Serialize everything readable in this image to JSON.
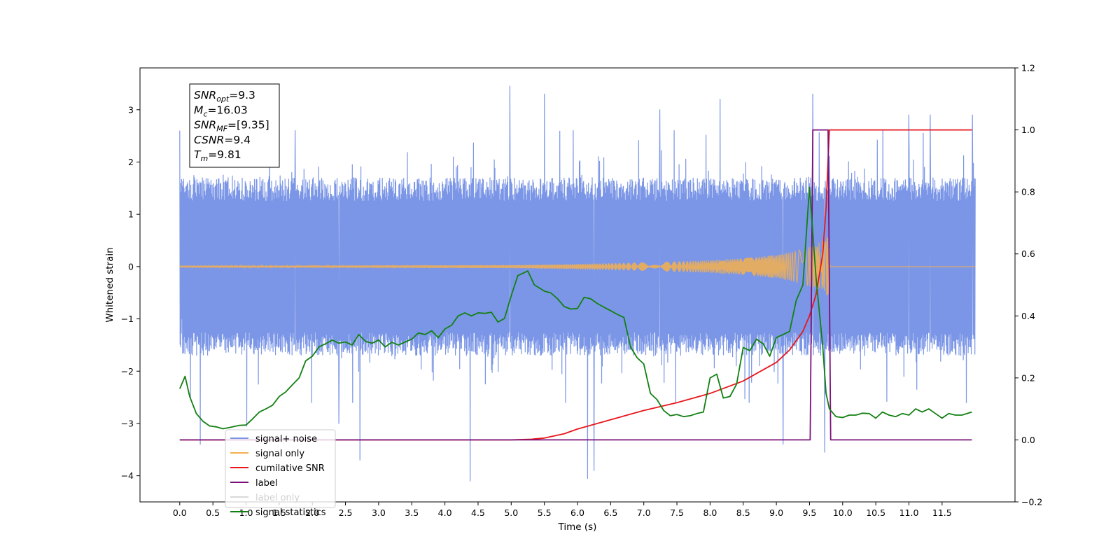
{
  "chart_data": {
    "type": "line",
    "title": "",
    "xlabel": "Time (s)",
    "ylabel": "Whitened strain",
    "ylabel_right": "",
    "xlim": [
      -0.6,
      12.6
    ],
    "ylim": [
      -4.5,
      3.8
    ],
    "ylim_right": [
      -0.2,
      1.2
    ],
    "grid": false,
    "legend_position": "lower-left",
    "x_ticks": [
      "0.0",
      "0.5",
      "1.0",
      "1.5",
      "2.0",
      "2.5",
      "3.0",
      "3.5",
      "4.0",
      "4.5",
      "5.0",
      "5.5",
      "6.0",
      "6.5",
      "7.0",
      "7.5",
      "8.0",
      "8.5",
      "9.0",
      "9.5",
      "10.0",
      "10.5",
      "11.0",
      "11.5"
    ],
    "x_tick_values": [
      0,
      0.5,
      1,
      1.5,
      2,
      2.5,
      3,
      3.5,
      4,
      4.5,
      5,
      5.5,
      6,
      6.5,
      7,
      7.5,
      8,
      8.5,
      9,
      9.5,
      10,
      10.5,
      11,
      11.5
    ],
    "y_ticks_left": [
      "−4",
      "−3",
      "−2",
      "−1",
      "0",
      "1",
      "2",
      "3"
    ],
    "y_tick_values_left": [
      -4,
      -3,
      -2,
      -1,
      0,
      1,
      2,
      3
    ],
    "y_ticks_right": [
      "−0.2",
      "0.0",
      "0.2",
      "0.4",
      "0.6",
      "0.8",
      "1.0",
      "1.2"
    ],
    "y_tick_values_right": [
      -0.2,
      0,
      0.2,
      0.4,
      0.6,
      0.8,
      1.0,
      1.2
    ],
    "info_box": {
      "lines": [
        {
          "sym": "SNR",
          "sub": "opt",
          "val": "=9.3"
        },
        {
          "sym": "M",
          "sub": "c",
          "val": "=16.03"
        },
        {
          "sym": "SNR",
          "sub": "MF",
          "val": "=[9.35]"
        },
        {
          "sym": "CSNR",
          "sub": "",
          "val": "=9.4"
        },
        {
          "sym": "T",
          "sub": "m",
          "val": "=9.81"
        }
      ]
    },
    "series": [
      {
        "name": "signal+ noise",
        "axis": "left",
        "color": "#7b96e6",
        "x_range": [
          0,
          12
        ],
        "noise_band": 1.7,
        "spike_max": 3.45,
        "spike_min": -4.1,
        "spikes": [
          [
            0.03,
            2.72
          ],
          [
            0.03,
            -1.0
          ],
          [
            0.31,
            -3.4
          ],
          [
            1.01,
            -3.05
          ],
          [
            1.74,
            2.6
          ],
          [
            2.4,
            -3.0
          ],
          [
            2.72,
            -3.7
          ],
          [
            4.38,
            -4.1
          ],
          [
            4.98,
            3.45
          ],
          [
            5.5,
            3.3
          ],
          [
            6.15,
            -4.05
          ],
          [
            6.25,
            -3.9
          ],
          [
            7.24,
            3.0
          ],
          [
            8.15,
            3.2
          ],
          [
            9.1,
            -3.4
          ],
          [
            9.55,
            3.3
          ],
          [
            9.73,
            -3.55
          ],
          [
            11.0,
            2.9
          ],
          [
            11.32,
            2.9
          ],
          [
            11.96,
            2.9
          ]
        ]
      },
      {
        "name": "signal only",
        "axis": "left",
        "color": "#f6b04e",
        "x": [
          0,
          5.0,
          6.0,
          7.0,
          8.0,
          8.5,
          9.0,
          9.3,
          9.5,
          9.65,
          9.75,
          9.8,
          9.81,
          12.0
        ],
        "amplitude": [
          0.01,
          0.03,
          0.05,
          0.08,
          0.12,
          0.16,
          0.22,
          0.3,
          0.38,
          0.46,
          0.55,
          0.6,
          0.0,
          0.0
        ]
      },
      {
        "name": "cumilative SNR",
        "axis": "right",
        "color": "#e8161b",
        "x": [
          0,
          5.0,
          5.3,
          5.5,
          5.8,
          6.0,
          6.5,
          7.0,
          7.5,
          8.0,
          8.5,
          9.0,
          9.2,
          9.4,
          9.5,
          9.6,
          9.7,
          9.75,
          9.8,
          11.95
        ],
        "values": [
          0,
          0,
          0.002,
          0.006,
          0.02,
          0.035,
          0.065,
          0.095,
          0.12,
          0.15,
          0.19,
          0.25,
          0.29,
          0.35,
          0.4,
          0.47,
          0.6,
          0.75,
          1.0,
          1.0
        ]
      },
      {
        "name": "label",
        "axis": "right",
        "color": "#7a127a",
        "x": [
          0,
          9.51,
          9.55,
          9.78,
          9.82,
          11.95
        ],
        "values": [
          0,
          0,
          1.0,
          1.0,
          0,
          0
        ]
      },
      {
        "name": "label only",
        "axis": "right",
        "color": "#d9d9d9",
        "x": [],
        "values": []
      },
      {
        "name": "signal statistics",
        "axis": "right",
        "color": "#128012",
        "x": [
          0,
          0.08,
          0.15,
          0.25,
          0.35,
          0.45,
          0.55,
          0.65,
          0.75,
          0.9,
          1.0,
          1.1,
          1.2,
          1.3,
          1.4,
          1.5,
          1.6,
          1.7,
          1.8,
          1.9,
          2.0,
          2.1,
          2.2,
          2.3,
          2.4,
          2.5,
          2.6,
          2.7,
          2.8,
          2.9,
          3.0,
          3.1,
          3.2,
          3.3,
          3.4,
          3.5,
          3.6,
          3.7,
          3.8,
          3.9,
          4.0,
          4.1,
          4.2,
          4.3,
          4.4,
          4.5,
          4.6,
          4.7,
          4.8,
          4.9,
          5.0,
          5.1,
          5.25,
          5.35,
          5.5,
          5.6,
          5.7,
          5.8,
          5.9,
          6.0,
          6.1,
          6.2,
          6.3,
          6.4,
          6.5,
          6.6,
          6.7,
          6.8,
          6.9,
          7.0,
          7.1,
          7.2,
          7.3,
          7.4,
          7.5,
          7.6,
          7.7,
          7.8,
          7.9,
          8.0,
          8.1,
          8.2,
          8.3,
          8.4,
          8.5,
          8.6,
          8.7,
          8.8,
          8.9,
          9.0,
          9.1,
          9.2,
          9.3,
          9.4,
          9.5,
          9.6,
          9.7,
          9.75,
          9.8,
          9.9,
          10.0,
          10.1,
          10.2,
          10.3,
          10.4,
          10.5,
          10.6,
          10.7,
          10.8,
          10.9,
          11.0,
          11.1,
          11.2,
          11.3,
          11.4,
          11.5,
          11.6,
          11.7,
          11.8,
          11.95
        ],
        "values": [
          0.165,
          0.205,
          0.14,
          0.085,
          0.06,
          0.045,
          0.042,
          0.036,
          0.04,
          0.047,
          0.048,
          0.068,
          0.09,
          0.1,
          0.112,
          0.14,
          0.155,
          0.178,
          0.2,
          0.255,
          0.27,
          0.3,
          0.31,
          0.322,
          0.312,
          0.316,
          0.306,
          0.34,
          0.318,
          0.312,
          0.322,
          0.3,
          0.315,
          0.306,
          0.316,
          0.325,
          0.345,
          0.34,
          0.352,
          0.33,
          0.358,
          0.37,
          0.4,
          0.41,
          0.4,
          0.41,
          0.408,
          0.412,
          0.38,
          0.392,
          0.465,
          0.53,
          0.545,
          0.5,
          0.48,
          0.474,
          0.455,
          0.43,
          0.422,
          0.424,
          0.46,
          0.455,
          0.44,
          0.428,
          0.417,
          0.405,
          0.395,
          0.3,
          0.265,
          0.245,
          0.15,
          0.13,
          0.095,
          0.078,
          0.082,
          0.075,
          0.078,
          0.085,
          0.09,
          0.2,
          0.212,
          0.135,
          0.14,
          0.18,
          0.298,
          0.288,
          0.325,
          0.31,
          0.27,
          0.33,
          0.34,
          0.35,
          0.45,
          0.5,
          0.815,
          0.52,
          0.3,
          0.15,
          0.1,
          0.075,
          0.072,
          0.08,
          0.08,
          0.086,
          0.085,
          0.07,
          0.09,
          0.08,
          0.075,
          0.085,
          0.08,
          0.1,
          0.09,
          0.1,
          0.085,
          0.07,
          0.085,
          0.08,
          0.08,
          0.09
        ]
      }
    ]
  }
}
